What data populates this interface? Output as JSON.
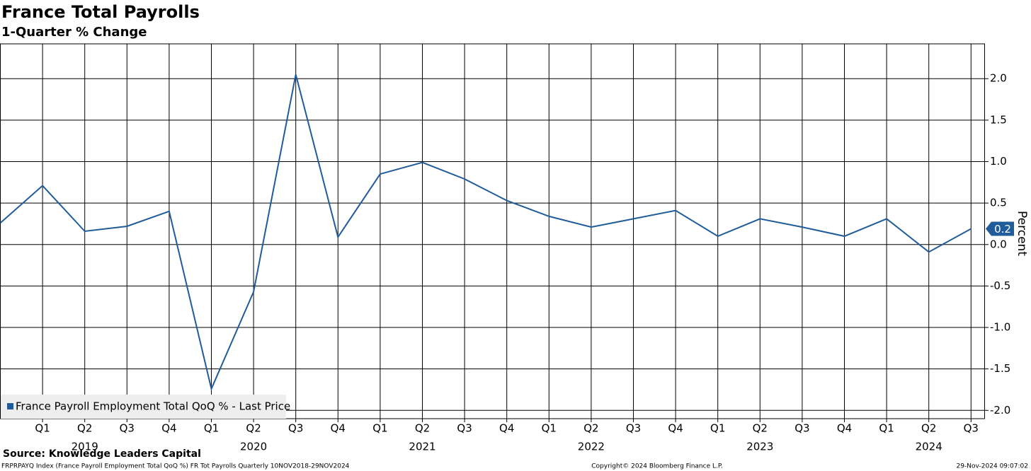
{
  "chart_data": {
    "type": "line",
    "title": "France Total Payrolls",
    "subtitle": "1-Quarter % Change",
    "y_axis_label": "Percent",
    "categories": [
      null,
      "Q1",
      "Q2",
      "Q3",
      "Q4",
      "Q1",
      "Q2",
      "Q3",
      "Q4",
      "Q1",
      "Q2",
      "Q3",
      "Q4",
      "Q1",
      "Q2",
      "Q3",
      "Q4",
      "Q1",
      "Q2",
      "Q3",
      "Q4",
      "Q1",
      "Q2",
      "Q3"
    ],
    "year_labels": [
      "2019",
      "2020",
      "2021",
      "2022",
      "2023",
      "2024"
    ],
    "series": [
      {
        "name": "France Payroll Employment Total QoQ % - Last Price",
        "color": "#1f5c99",
        "values": [
          0.26,
          0.71,
          0.16,
          0.22,
          0.4,
          -1.74,
          -0.57,
          2.05,
          0.09,
          0.85,
          0.99,
          0.79,
          0.53,
          0.34,
          0.21,
          0.31,
          0.41,
          0.1,
          0.31,
          0.21,
          0.1,
          0.31,
          -0.09,
          0.19
        ],
        "value_labels": [
          null,
          null,
          null,
          null,
          null,
          null,
          null,
          null,
          null,
          null,
          null,
          null,
          null,
          null,
          null,
          null,
          null,
          null,
          null,
          null,
          null,
          null,
          null,
          "0.2"
        ]
      }
    ],
    "ylim": [
      -2.1,
      2.42
    ],
    "yticks": [
      {
        "value": -2,
        "label": "-2.0"
      },
      {
        "value": -1.5,
        "label": "-1.5"
      },
      {
        "value": -1,
        "label": "-1.0"
      },
      {
        "value": -0.5,
        "label": "-0.5"
      },
      {
        "value": 0,
        "label": "0.0"
      },
      {
        "value": 0.5,
        "label": "0.5"
      },
      {
        "value": 1,
        "label": "1.0"
      },
      {
        "value": 1.5,
        "label": "1.5"
      },
      {
        "value": 2,
        "label": "2.0"
      }
    ],
    "grid": true,
    "legend_position": "bottom-left",
    "source": "Source: Knowledge Leaders Capital",
    "footer_left": "FRPRPAYQ Index (France Payroll Employment Total QoQ %) FR Tot Payrolls  Quarterly 10NOV2018-29NOV2024",
    "footer_center": "Copyright© 2024 Bloomberg Finance L.P.",
    "footer_right": "29-Nov-2024 09:07:02"
  }
}
